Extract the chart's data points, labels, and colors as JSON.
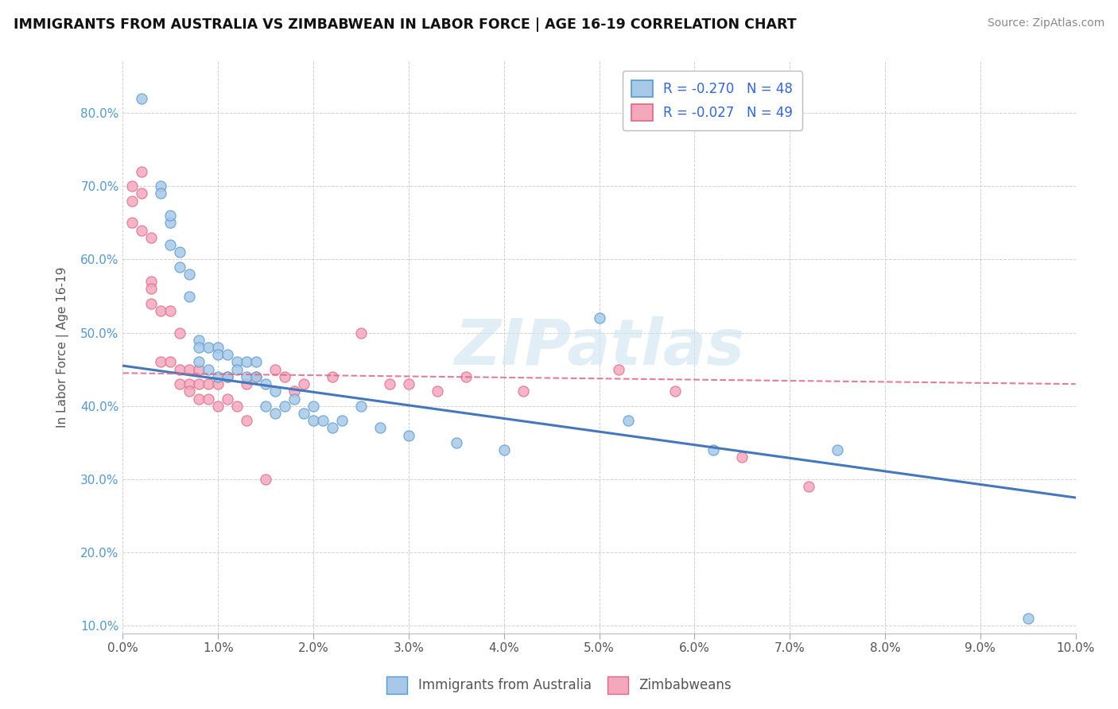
{
  "title": "IMMIGRANTS FROM AUSTRALIA VS ZIMBABWEAN IN LABOR FORCE | AGE 16-19 CORRELATION CHART",
  "source": "Source: ZipAtlas.com",
  "ylabel": "In Labor Force | Age 16-19",
  "xlim": [
    0.0,
    0.1
  ],
  "ylim": [
    0.09,
    0.87
  ],
  "xticks": [
    0.0,
    0.01,
    0.02,
    0.03,
    0.04,
    0.05,
    0.06,
    0.07,
    0.08,
    0.09,
    0.1
  ],
  "yticks": [
    0.1,
    0.2,
    0.3,
    0.4,
    0.5,
    0.6,
    0.7,
    0.8
  ],
  "legend_R_australia": "-0.270",
  "legend_N_australia": "48",
  "legend_R_zimbabwe": "-0.027",
  "legend_N_zimbabwe": "49",
  "australia_color": "#a8c8e8",
  "zimbabwe_color": "#f4a8bc",
  "australia_edge_color": "#5599cc",
  "zimbabwe_edge_color": "#dd6688",
  "australia_line_color": "#4477bb",
  "zimbabwe_line_color": "#dd6688",
  "background_color": "#ffffff",
  "grid_color": "#cccccc",
  "watermark": "ZIPatlas",
  "australia_x": [
    0.002,
    0.004,
    0.004,
    0.005,
    0.005,
    0.005,
    0.006,
    0.006,
    0.007,
    0.007,
    0.008,
    0.008,
    0.008,
    0.009,
    0.009,
    0.01,
    0.01,
    0.01,
    0.011,
    0.011,
    0.012,
    0.012,
    0.013,
    0.013,
    0.014,
    0.014,
    0.015,
    0.015,
    0.016,
    0.016,
    0.017,
    0.018,
    0.019,
    0.02,
    0.02,
    0.021,
    0.022,
    0.023,
    0.025,
    0.027,
    0.03,
    0.035,
    0.04,
    0.05,
    0.053,
    0.062,
    0.075,
    0.095
  ],
  "australia_y": [
    0.82,
    0.7,
    0.69,
    0.65,
    0.66,
    0.62,
    0.61,
    0.59,
    0.58,
    0.55,
    0.49,
    0.48,
    0.46,
    0.48,
    0.45,
    0.48,
    0.47,
    0.44,
    0.47,
    0.44,
    0.46,
    0.45,
    0.46,
    0.44,
    0.46,
    0.44,
    0.43,
    0.4,
    0.42,
    0.39,
    0.4,
    0.41,
    0.39,
    0.38,
    0.4,
    0.38,
    0.37,
    0.38,
    0.4,
    0.37,
    0.36,
    0.35,
    0.34,
    0.52,
    0.38,
    0.34,
    0.34,
    0.11
  ],
  "zimbabwe_x": [
    0.001,
    0.001,
    0.001,
    0.002,
    0.002,
    0.002,
    0.003,
    0.003,
    0.003,
    0.003,
    0.004,
    0.004,
    0.005,
    0.005,
    0.006,
    0.006,
    0.006,
    0.007,
    0.007,
    0.007,
    0.008,
    0.008,
    0.008,
    0.009,
    0.009,
    0.01,
    0.01,
    0.011,
    0.011,
    0.012,
    0.013,
    0.013,
    0.014,
    0.015,
    0.016,
    0.017,
    0.018,
    0.019,
    0.022,
    0.025,
    0.028,
    0.03,
    0.033,
    0.036,
    0.042,
    0.052,
    0.058,
    0.065,
    0.072
  ],
  "zimbabwe_y": [
    0.7,
    0.68,
    0.65,
    0.72,
    0.69,
    0.64,
    0.63,
    0.57,
    0.56,
    0.54,
    0.53,
    0.46,
    0.53,
    0.46,
    0.45,
    0.43,
    0.5,
    0.43,
    0.45,
    0.42,
    0.41,
    0.43,
    0.45,
    0.41,
    0.43,
    0.4,
    0.43,
    0.41,
    0.44,
    0.4,
    0.43,
    0.38,
    0.44,
    0.3,
    0.45,
    0.44,
    0.42,
    0.43,
    0.44,
    0.5,
    0.43,
    0.43,
    0.42,
    0.44,
    0.42,
    0.45,
    0.42,
    0.33,
    0.29
  ]
}
